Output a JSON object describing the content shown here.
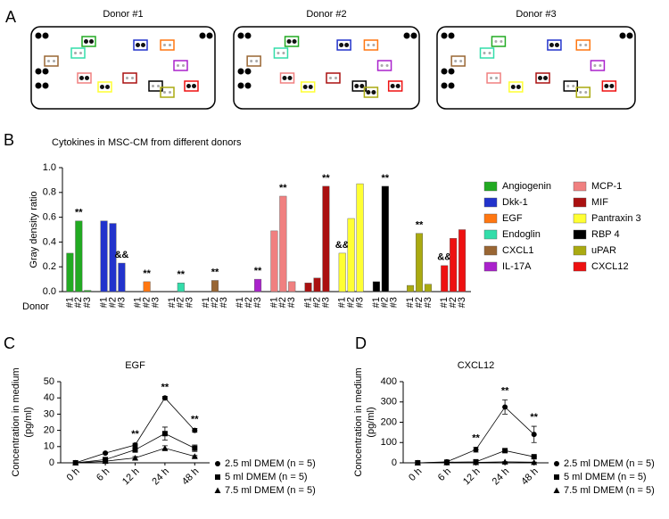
{
  "panel_labels": [
    "A",
    "B",
    "C",
    "D"
  ],
  "blot_titles": [
    "Donor #1",
    "Donor #2",
    "Donor #3"
  ],
  "chart_data": [
    {
      "type": "grouped_bar",
      "title": "Cytokines in MSC-CM from different donors",
      "ylabel": "Gray density ratio",
      "xlabel": "Donor",
      "categories": [
        "#1",
        "#2",
        "#3"
      ],
      "ylim": [
        0,
        1
      ],
      "yticks": [
        {
          "value": 0,
          "label": "0.0"
        },
        0.2,
        0.4,
        0.6,
        0.8,
        {
          "value": 1,
          "label": "1.0"
        }
      ],
      "series": [
        {
          "name": "Angiogenin",
          "color": "#22aa22",
          "values": [
            0.31,
            0.57,
            0.01
          ],
          "significance": [
            null,
            "**",
            null
          ]
        },
        {
          "name": "Dkk-1",
          "color": "#2233cc",
          "values": [
            0.57,
            0.55,
            0.23
          ],
          "significance": [
            null,
            null,
            "&&"
          ]
        },
        {
          "name": "EGF",
          "color": "#ff7711",
          "values": [
            0,
            0.08,
            0
          ],
          "significance": [
            null,
            "**",
            null
          ]
        },
        {
          "name": "Endoglin",
          "color": "#33ddaa",
          "values": [
            0,
            0.07,
            0
          ],
          "significance": [
            null,
            "**",
            null
          ]
        },
        {
          "name": "CXCL1",
          "color": "#996633",
          "values": [
            0,
            0.09,
            0
          ],
          "significance": [
            null,
            "**",
            null
          ]
        },
        {
          "name": "IL-17A",
          "color": "#aa22cc",
          "values": [
            0,
            0,
            0.1
          ],
          "significance": [
            null,
            null,
            "**"
          ]
        },
        {
          "name": "MCP-1",
          "color": "#f08080",
          "values": [
            0.49,
            0.77,
            0.08
          ],
          "significance": [
            null,
            "**",
            null
          ]
        },
        {
          "name": "MIF",
          "color": "#aa1111",
          "values": [
            0.07,
            0.11,
            0.85
          ],
          "significance": [
            null,
            null,
            "**"
          ]
        },
        {
          "name": "Pantraxin 3",
          "color": "#ffff33",
          "values": [
            0.31,
            0.59,
            0.87
          ],
          "significance": [
            "&&",
            null,
            null
          ]
        },
        {
          "name": "RBP 4",
          "color": "#000000",
          "values": [
            0.08,
            0.85,
            0
          ],
          "significance": [
            null,
            "**",
            null
          ]
        },
        {
          "name": "uPAR",
          "color": "#aaaa11",
          "values": [
            0.05,
            0.47,
            0.06
          ],
          "significance": [
            null,
            "**",
            null
          ]
        },
        {
          "name": "CXCL12",
          "color": "#ee1111",
          "values": [
            0.21,
            0.43,
            0.5
          ],
          "significance": [
            "&&",
            null,
            null
          ]
        }
      ]
    },
    {
      "type": "line",
      "title": "EGF",
      "ylabel": [
        "Concentration in medium",
        "(pg/ml)"
      ],
      "categories": [
        "0 h",
        "6 h",
        "12 h",
        "24 h",
        "48 h"
      ],
      "ylim": [
        0,
        50
      ],
      "yticks": [
        0,
        10,
        20,
        30,
        40,
        50
      ],
      "annotations": [
        null,
        null,
        "**",
        "**",
        "**"
      ],
      "series": [
        {
          "name": "2.5 ml DMEM (n = 5)",
          "marker": "circle",
          "color": "#000000",
          "values": [
            0,
            6,
            11,
            40,
            20
          ],
          "errors": [
            0,
            0.5,
            1,
            1,
            1.2
          ]
        },
        {
          "name": "5 ml DMEM (n = 5)",
          "marker": "square",
          "color": "#000000",
          "values": [
            0,
            2,
            8,
            18,
            9
          ],
          "errors": [
            0,
            0.5,
            1.5,
            4,
            2
          ]
        },
        {
          "name": "7.5 ml DMEM (n = 5)",
          "marker": "triangle",
          "color": "#000000",
          "values": [
            0,
            1,
            3,
            9,
            4
          ],
          "errors": [
            0,
            0.3,
            0.8,
            1.5,
            0.5
          ]
        }
      ]
    },
    {
      "type": "line",
      "title": "CXCL12",
      "ylabel": [
        "Concentration in medium",
        "(pg/ml)"
      ],
      "categories": [
        "0 h",
        "6 h",
        "12 h",
        "24 h",
        "48 h"
      ],
      "ylim": [
        0,
        400
      ],
      "yticks": [
        0,
        100,
        200,
        300,
        400
      ],
      "annotations": [
        null,
        null,
        "**",
        "**",
        "**"
      ],
      "series": [
        {
          "name": "2.5 ml DMEM (n = 5)",
          "marker": "circle",
          "color": "#000000",
          "values": [
            0,
            5,
            65,
            275,
            140
          ],
          "errors": [
            0,
            2,
            12,
            35,
            40
          ]
        },
        {
          "name": "5 ml DMEM (n = 5)",
          "marker": "square",
          "color": "#000000",
          "values": [
            0,
            3,
            5,
            60,
            30
          ],
          "errors": [
            0,
            1,
            2,
            5,
            3
          ]
        },
        {
          "name": "7.5 ml DMEM (n = 5)",
          "marker": "triangle",
          "color": "#000000",
          "values": [
            0,
            1,
            2,
            5,
            3
          ],
          "errors": [
            0,
            0.5,
            1,
            1,
            1
          ]
        }
      ]
    }
  ]
}
